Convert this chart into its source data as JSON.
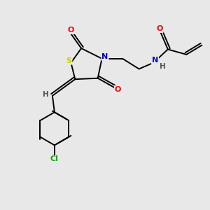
{
  "background_color": "#e8e8e8",
  "atom_colors": {
    "S": "#cccc00",
    "N": "#0000cc",
    "O": "#ff0000",
    "Cl": "#00aa00",
    "C": "#000000",
    "H": "#555555"
  },
  "bond_color": "#000000",
  "figsize": [
    3.0,
    3.0
  ],
  "dpi": 100
}
